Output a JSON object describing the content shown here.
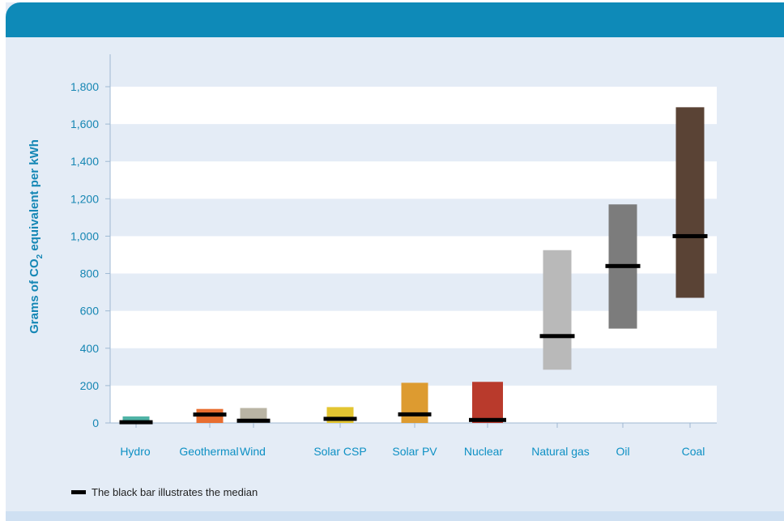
{
  "chart_data": {
    "type": "bar",
    "subtype": "range-with-median",
    "ylabel": {
      "prefix": "Grams of CO",
      "subscript": "2",
      "suffix": " equivalent per kWh"
    },
    "ylim": [
      0,
      1800
    ],
    "yticks": [
      0,
      200,
      400,
      600,
      800,
      1000,
      1200,
      1400,
      1600,
      1800
    ],
    "ytick_labels": [
      "0",
      "200",
      "400",
      "600",
      "800",
      "1,000",
      "1,200",
      "1,400",
      "1,600",
      "1,800"
    ],
    "grid": "horizontal alternating bands",
    "categories": [
      "Hydro",
      "Geothermal",
      "Wind",
      "Solar CSP",
      "Solar PV",
      "Nuclear",
      "Natural gas",
      "Oil",
      "Coal"
    ],
    "series": [
      {
        "category": "Hydro",
        "min": 0,
        "max": 35,
        "median": 4,
        "color": "#4fb3a6"
      },
      {
        "category": "Geothermal",
        "min": 0,
        "max": 75,
        "median": 45,
        "color": "#e86e30"
      },
      {
        "category": "Wind",
        "min": 0,
        "max": 80,
        "median": 12,
        "color": "#b9b4a4"
      },
      {
        "category": "Solar CSP",
        "min": 0,
        "max": 85,
        "median": 22,
        "color": "#e3c531"
      },
      {
        "category": "Solar PV",
        "min": 0,
        "max": 215,
        "median": 46,
        "color": "#dd9b30"
      },
      {
        "category": "Nuclear",
        "min": 0,
        "max": 220,
        "median": 16,
        "color": "#b93a2c"
      },
      {
        "category": "Natural gas",
        "min": 285,
        "max": 925,
        "median": 465,
        "color": "#b9b9b9"
      },
      {
        "category": "Oil",
        "min": 505,
        "max": 1170,
        "median": 840,
        "color": "#7c7c7c"
      },
      {
        "category": "Coal",
        "min": 670,
        "max": 1690,
        "median": 1000,
        "color": "#5a4335"
      }
    ],
    "median_color": "#000000",
    "legend": {
      "text": "The black bar illustrates the median",
      "placement": "bottom-left"
    }
  }
}
